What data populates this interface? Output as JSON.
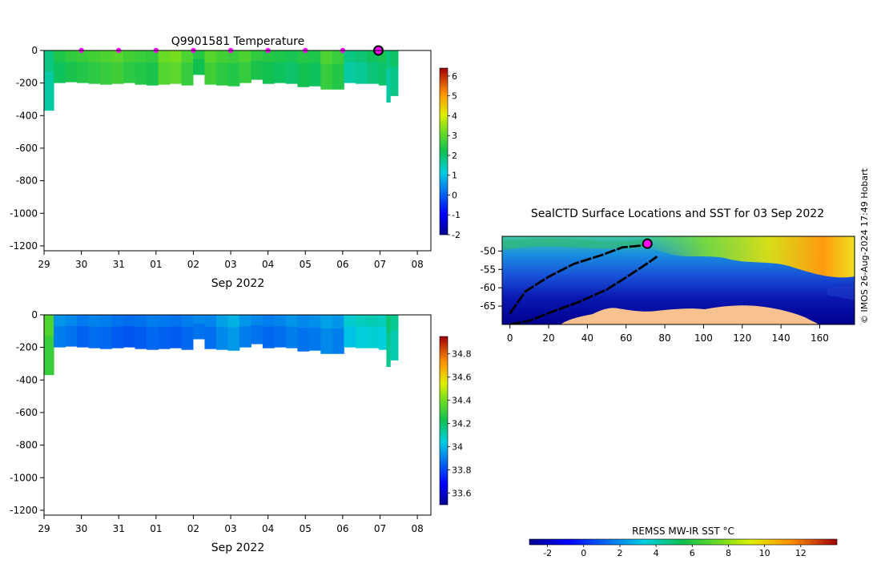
{
  "chart_data": [
    {
      "type": "heatmap",
      "title": "Q9901581  Temperature",
      "xlabel": "Sep 2022",
      "x_ticks": [
        "29",
        "30",
        "31",
        "01",
        "02",
        "03",
        "04",
        "05",
        "06",
        "07",
        "08"
      ],
      "y_ticks": [
        "0",
        "-200",
        "-400",
        "-600",
        "-800",
        "-1000",
        "-1200"
      ],
      "y_tick_values": [
        0,
        -200,
        -400,
        -600,
        -800,
        -1000,
        -1200
      ],
      "ylim": [
        -1230,
        0
      ],
      "xlim": [
        29,
        39
      ],
      "colorbar": {
        "min": -2,
        "max": 6.4,
        "ticks": [
          "6",
          "5",
          "4",
          "3",
          "2",
          "1",
          "0",
          "-1",
          "-2"
        ]
      },
      "profile_markers_x": [
        30,
        31,
        32,
        33,
        34,
        35,
        36,
        37,
        38
      ],
      "profiles": [
        {
          "x": 29.0,
          "max_depth": 370,
          "value": 1.6
        },
        {
          "x": 29.25,
          "max_depth": 200,
          "value": 2.1
        },
        {
          "x": 29.55,
          "max_depth": 195,
          "value": 2.3
        },
        {
          "x": 29.85,
          "max_depth": 200,
          "value": 2.4
        },
        {
          "x": 30.15,
          "max_depth": 205,
          "value": 2.5
        },
        {
          "x": 30.45,
          "max_depth": 210,
          "value": 2.6
        },
        {
          "x": 30.75,
          "max_depth": 205,
          "value": 2.7
        },
        {
          "x": 31.05,
          "max_depth": 200,
          "value": 2.5
        },
        {
          "x": 31.35,
          "max_depth": 210,
          "value": 2.4
        },
        {
          "x": 31.65,
          "max_depth": 215,
          "value": 2.3
        },
        {
          "x": 31.95,
          "max_depth": 210,
          "value": 2.9
        },
        {
          "x": 32.25,
          "max_depth": 205,
          "value": 3.0
        },
        {
          "x": 32.55,
          "max_depth": 215,
          "value": 2.6
        },
        {
          "x": 32.85,
          "max_depth": 150,
          "value": 2.2
        },
        {
          "x": 33.15,
          "max_depth": 210,
          "value": 2.7
        },
        {
          "x": 33.45,
          "max_depth": 215,
          "value": 2.5
        },
        {
          "x": 33.75,
          "max_depth": 220,
          "value": 2.4
        },
        {
          "x": 34.05,
          "max_depth": 200,
          "value": 2.6
        },
        {
          "x": 34.35,
          "max_depth": 180,
          "value": 2.3
        },
        {
          "x": 34.65,
          "max_depth": 205,
          "value": 2.2
        },
        {
          "x": 34.95,
          "max_depth": 200,
          "value": 2.1
        },
        {
          "x": 35.25,
          "max_depth": 205,
          "value": 2.0
        },
        {
          "x": 35.55,
          "max_depth": 225,
          "value": 2.2
        },
        {
          "x": 35.85,
          "max_depth": 220,
          "value": 2.1
        },
        {
          "x": 36.15,
          "max_depth": 240,
          "value": 2.6
        },
        {
          "x": 36.45,
          "max_depth": 240,
          "value": 2.4
        },
        {
          "x": 36.75,
          "max_depth": 200,
          "value": 1.6
        },
        {
          "x": 37.05,
          "max_depth": 205,
          "value": 1.7
        },
        {
          "x": 37.35,
          "max_depth": 205,
          "value": 1.9
        },
        {
          "x": 37.65,
          "max_depth": 215,
          "value": 2.0
        },
        {
          "x": 37.85,
          "max_depth": 320,
          "value": 1.6
        },
        {
          "x": 37.95,
          "max_depth": 280,
          "value": 1.8
        }
      ]
    },
    {
      "type": "heatmap",
      "xlabel": "Sep 2022",
      "x_ticks": [
        "29",
        "30",
        "31",
        "01",
        "02",
        "03",
        "04",
        "05",
        "06",
        "07",
        "08"
      ],
      "y_ticks": [
        "0",
        "-200",
        "-400",
        "-600",
        "-800",
        "-1000",
        "-1200"
      ],
      "y_tick_values": [
        0,
        -200,
        -400,
        -600,
        -800,
        -1000,
        -1200
      ],
      "ylim": [
        -1230,
        0
      ],
      "xlim": [
        29,
        39
      ],
      "colorbar": {
        "min": 33.5,
        "max": 34.95,
        "ticks": [
          "34.8",
          "34.6",
          "34.4",
          "34.2",
          "34",
          "33.8",
          "33.6"
        ]
      },
      "profiles": [
        {
          "x": 29.0,
          "max_depth": 370,
          "value": 34.3
        },
        {
          "x": 29.25,
          "max_depth": 200,
          "value": 33.9
        },
        {
          "x": 29.55,
          "max_depth": 195,
          "value": 33.88
        },
        {
          "x": 29.85,
          "max_depth": 200,
          "value": 33.85
        },
        {
          "x": 30.15,
          "max_depth": 205,
          "value": 33.87
        },
        {
          "x": 30.45,
          "max_depth": 210,
          "value": 33.86
        },
        {
          "x": 30.75,
          "max_depth": 205,
          "value": 33.84
        },
        {
          "x": 31.05,
          "max_depth": 200,
          "value": 33.83
        },
        {
          "x": 31.35,
          "max_depth": 210,
          "value": 33.84
        },
        {
          "x": 31.65,
          "max_depth": 215,
          "value": 33.86
        },
        {
          "x": 31.95,
          "max_depth": 210,
          "value": 33.85
        },
        {
          "x": 32.25,
          "max_depth": 205,
          "value": 33.84
        },
        {
          "x": 32.55,
          "max_depth": 215,
          "value": 33.86
        },
        {
          "x": 32.85,
          "max_depth": 150,
          "value": 33.88
        },
        {
          "x": 33.15,
          "max_depth": 210,
          "value": 33.87
        },
        {
          "x": 33.45,
          "max_depth": 215,
          "value": 33.92
        },
        {
          "x": 33.75,
          "max_depth": 220,
          "value": 33.95
        },
        {
          "x": 34.05,
          "max_depth": 200,
          "value": 33.9
        },
        {
          "x": 34.35,
          "max_depth": 180,
          "value": 33.88
        },
        {
          "x": 34.65,
          "max_depth": 205,
          "value": 33.86
        },
        {
          "x": 34.95,
          "max_depth": 200,
          "value": 33.87
        },
        {
          "x": 35.25,
          "max_depth": 205,
          "value": 33.9
        },
        {
          "x": 35.55,
          "max_depth": 225,
          "value": 33.88
        },
        {
          "x": 35.85,
          "max_depth": 220,
          "value": 33.89
        },
        {
          "x": 36.15,
          "max_depth": 240,
          "value": 33.92
        },
        {
          "x": 36.45,
          "max_depth": 240,
          "value": 33.9
        },
        {
          "x": 36.75,
          "max_depth": 200,
          "value": 34.02
        },
        {
          "x": 37.05,
          "max_depth": 205,
          "value": 34.05
        },
        {
          "x": 37.35,
          "max_depth": 205,
          "value": 34.06
        },
        {
          "x": 37.65,
          "max_depth": 215,
          "value": 34.05
        },
        {
          "x": 37.85,
          "max_depth": 320,
          "value": 34.15
        },
        {
          "x": 37.95,
          "max_depth": 280,
          "value": 34.1
        }
      ]
    },
    {
      "type": "heatmap",
      "title": "SealCTD Surface Locations and SST for 03 Sep 2022",
      "xlim": [
        -4,
        178
      ],
      "ylim": [
        -70,
        -46
      ],
      "x_ticks": [
        "0",
        "20",
        "40",
        "60",
        "80",
        "100",
        "120",
        "140",
        "160"
      ],
      "x_tick_values": [
        0,
        20,
        40,
        60,
        80,
        100,
        120,
        140,
        160
      ],
      "y_ticks": [
        "-50",
        "-55",
        "-60",
        "-65"
      ],
      "y_tick_values": [
        -50,
        -55,
        -60,
        -65
      ],
      "colorbar": {
        "label": "REMSS MW-IR SST °C",
        "min": -3,
        "max": 14,
        "ticks": [
          "-2",
          "0",
          "2",
          "4",
          "6",
          "8",
          "10",
          "12"
        ],
        "tick_values": [
          -2,
          0,
          2,
          4,
          6,
          8,
          10,
          12
        ]
      },
      "track_lines": [
        [
          [
            0,
            -67
          ],
          [
            8,
            -61
          ],
          [
            20,
            -57
          ],
          [
            33,
            -53.5
          ],
          [
            48,
            -51
          ],
          [
            58,
            -49
          ],
          [
            68,
            -48.5
          ],
          [
            73,
            -48
          ]
        ],
        [
          [
            0,
            -70
          ],
          [
            10,
            -69
          ],
          [
            22,
            -66.5
          ],
          [
            35,
            -64
          ],
          [
            50,
            -60.5
          ],
          [
            62,
            -56.5
          ],
          [
            72,
            -53
          ],
          [
            76,
            -51.5
          ]
        ]
      ],
      "current_location": {
        "x": 71,
        "y": -48
      }
    }
  ],
  "credit": "© IMOS 26-Aug-2024 17:49 Hobart"
}
